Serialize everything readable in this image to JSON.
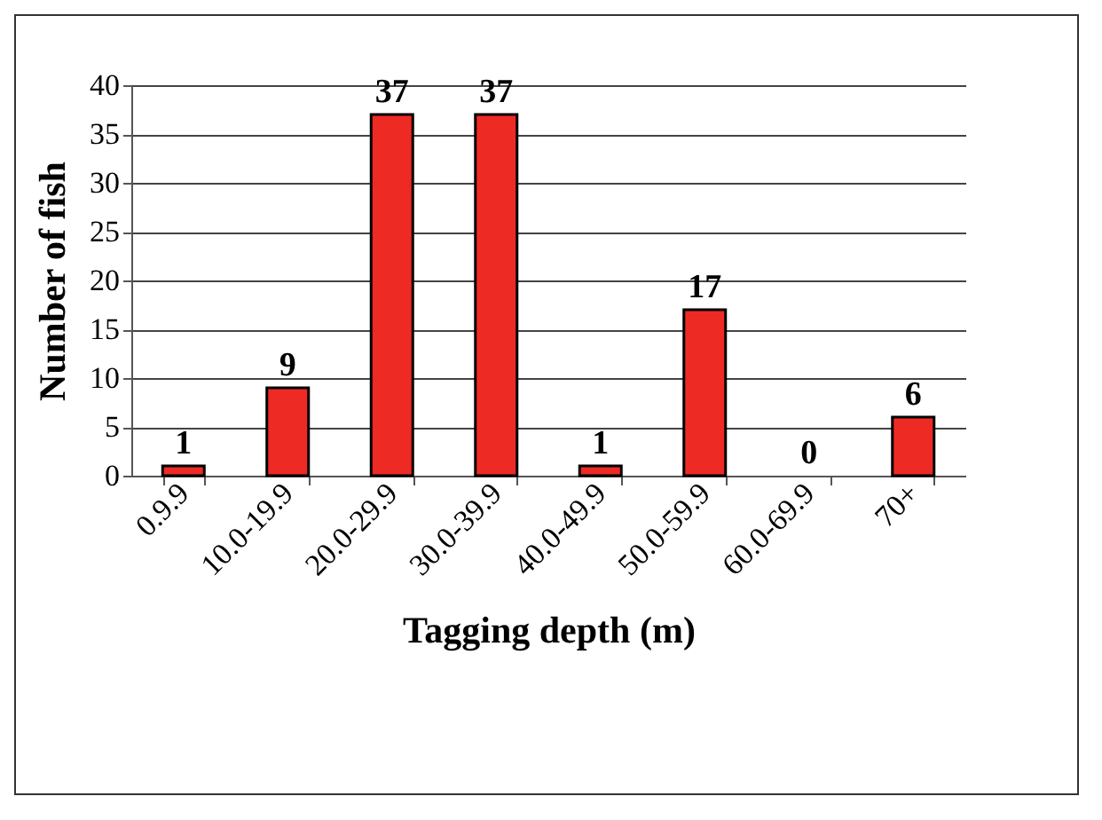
{
  "chart_data": {
    "type": "bar",
    "xlabel": "Tagging depth (m)",
    "ylabel": "Number of fish",
    "categories": [
      "0.9.9",
      "10.0-19.9",
      "20.0-29.9",
      "30.0-39.9",
      "40.0-49.9",
      "50.0-59.9",
      "60.0-69.9",
      "70+"
    ],
    "values": [
      1,
      9,
      37,
      37,
      1,
      17,
      0,
      6
    ],
    "color": "#ee2a24",
    "ylim": [
      0,
      40
    ],
    "yticks": [
      0,
      5,
      10,
      15,
      20,
      25,
      30,
      35,
      40
    ],
    "grid": "y",
    "data_labels": true,
    "legend": false
  }
}
